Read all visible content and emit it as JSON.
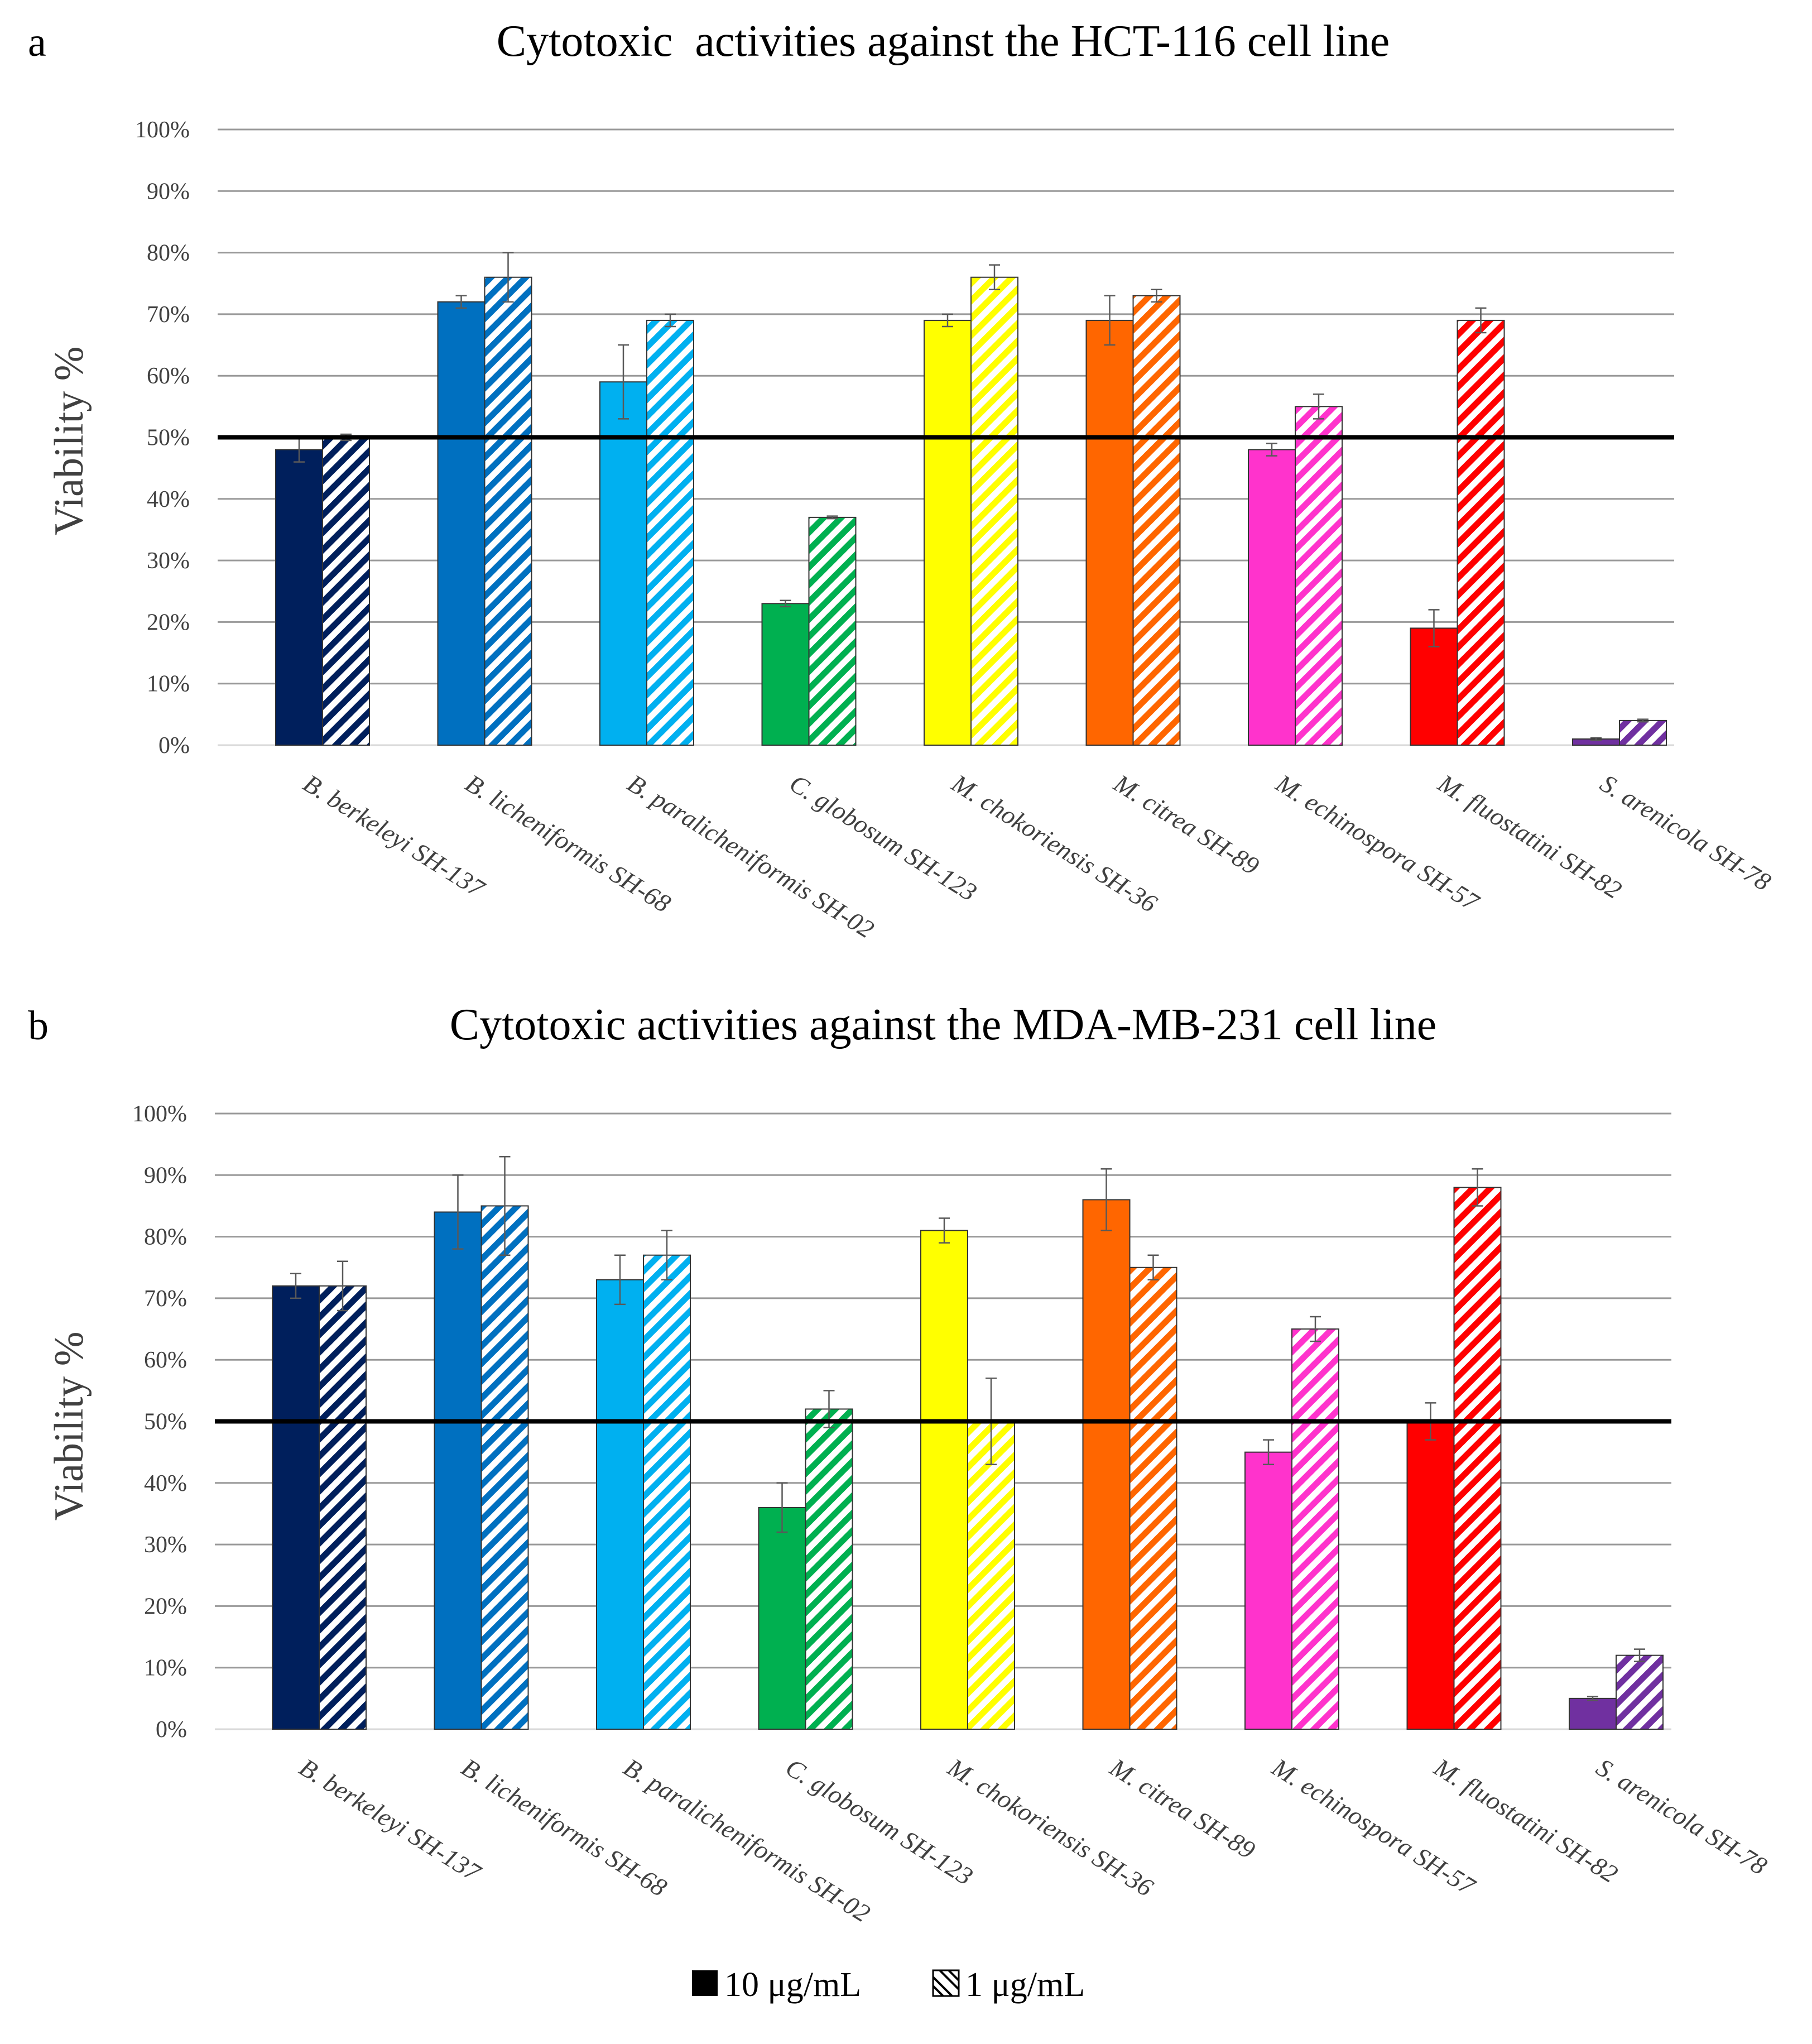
{
  "legend": {
    "items": [
      {
        "label": "10 μg/mL",
        "pattern": "solid"
      },
      {
        "label": "1 μg/mL",
        "pattern": "hatched"
      }
    ]
  },
  "colors": {
    "gridline": "#999999",
    "threshold": "#000000",
    "bar_outline": "#333333",
    "error_bar": "#595959",
    "text": "#404040"
  },
  "chart_data": [
    {
      "type": "bar",
      "panel": "a",
      "title": "Cytotoxic  activities against the HCT-116 cell line",
      "xlabel": "",
      "ylabel": "Viability %",
      "ylim": [
        0,
        100
      ],
      "yticks": [
        "0%",
        "10%",
        "20%",
        "30%",
        "40%",
        "50%",
        "60%",
        "70%",
        "80%",
        "90%",
        "100%"
      ],
      "grid": true,
      "threshold": 50,
      "categories": [
        "B. berkeleyi SH-137",
        "B. licheniformis SH-68",
        "B. paralicheniformis SH-02",
        "C. globosum SH-123",
        "M. chokoriensis SH-36",
        "M. citrea SH-89",
        "M. echinospora SH-57",
        "M. fluostatini SH-82",
        "S. arenicola SH-78"
      ],
      "bar_colors": [
        "#001F5C",
        "#0070C0",
        "#00B0F0",
        "#00B050",
        "#FFFF00",
        "#FF6600",
        "#FF33CC",
        "#FF0000",
        "#7030A0"
      ],
      "series": [
        {
          "name": "10 μg/mL",
          "values": [
            48,
            72,
            59,
            23,
            69,
            69,
            48,
            19,
            1
          ],
          "errors": [
            2,
            1,
            6,
            0.5,
            1,
            4,
            1,
            3,
            0.2
          ]
        },
        {
          "name": "1 μg/mL",
          "values": [
            50,
            76,
            69,
            37,
            76,
            73,
            55,
            69,
            4
          ],
          "errors": [
            0.5,
            4,
            1,
            0.2,
            2,
            1,
            2,
            2,
            0.2
          ]
        }
      ]
    },
    {
      "type": "bar",
      "panel": "b",
      "title": "Cytotoxic activities against the MDA-MB-231 cell line",
      "xlabel": "",
      "ylabel": "Viability %",
      "ylim": [
        0,
        100
      ],
      "yticks": [
        "0%",
        "10%",
        "20%",
        "30%",
        "40%",
        "50%",
        "60%",
        "70%",
        "80%",
        "90%",
        "100%"
      ],
      "grid": true,
      "threshold": 50,
      "categories": [
        "B. berkeleyi SH-137",
        "B. licheniformis SH-68",
        "B. paralicheniformis SH-02",
        "C. globosum SH-123",
        "M. chokoriensis SH-36",
        "M. citrea SH-89",
        "M. echinospora SH-57",
        "M. fluostatini SH-82",
        "S. arenicola SH-78"
      ],
      "bar_colors": [
        "#001F5C",
        "#0070C0",
        "#00B0F0",
        "#00B050",
        "#FFFF00",
        "#FF6600",
        "#FF33CC",
        "#FF0000",
        "#7030A0"
      ],
      "series": [
        {
          "name": "10 μg/mL",
          "values": [
            72,
            84,
            73,
            36,
            81,
            86,
            45,
            50,
            5
          ],
          "errors": [
            2,
            6,
            4,
            4,
            2,
            5,
            2,
            3,
            0.3
          ]
        },
        {
          "name": "1 μg/mL",
          "values": [
            72,
            85,
            77,
            52,
            50,
            75,
            65,
            88,
            12
          ],
          "errors": [
            4,
            8,
            4,
            3,
            7,
            2,
            2,
            3,
            1
          ]
        }
      ]
    }
  ]
}
